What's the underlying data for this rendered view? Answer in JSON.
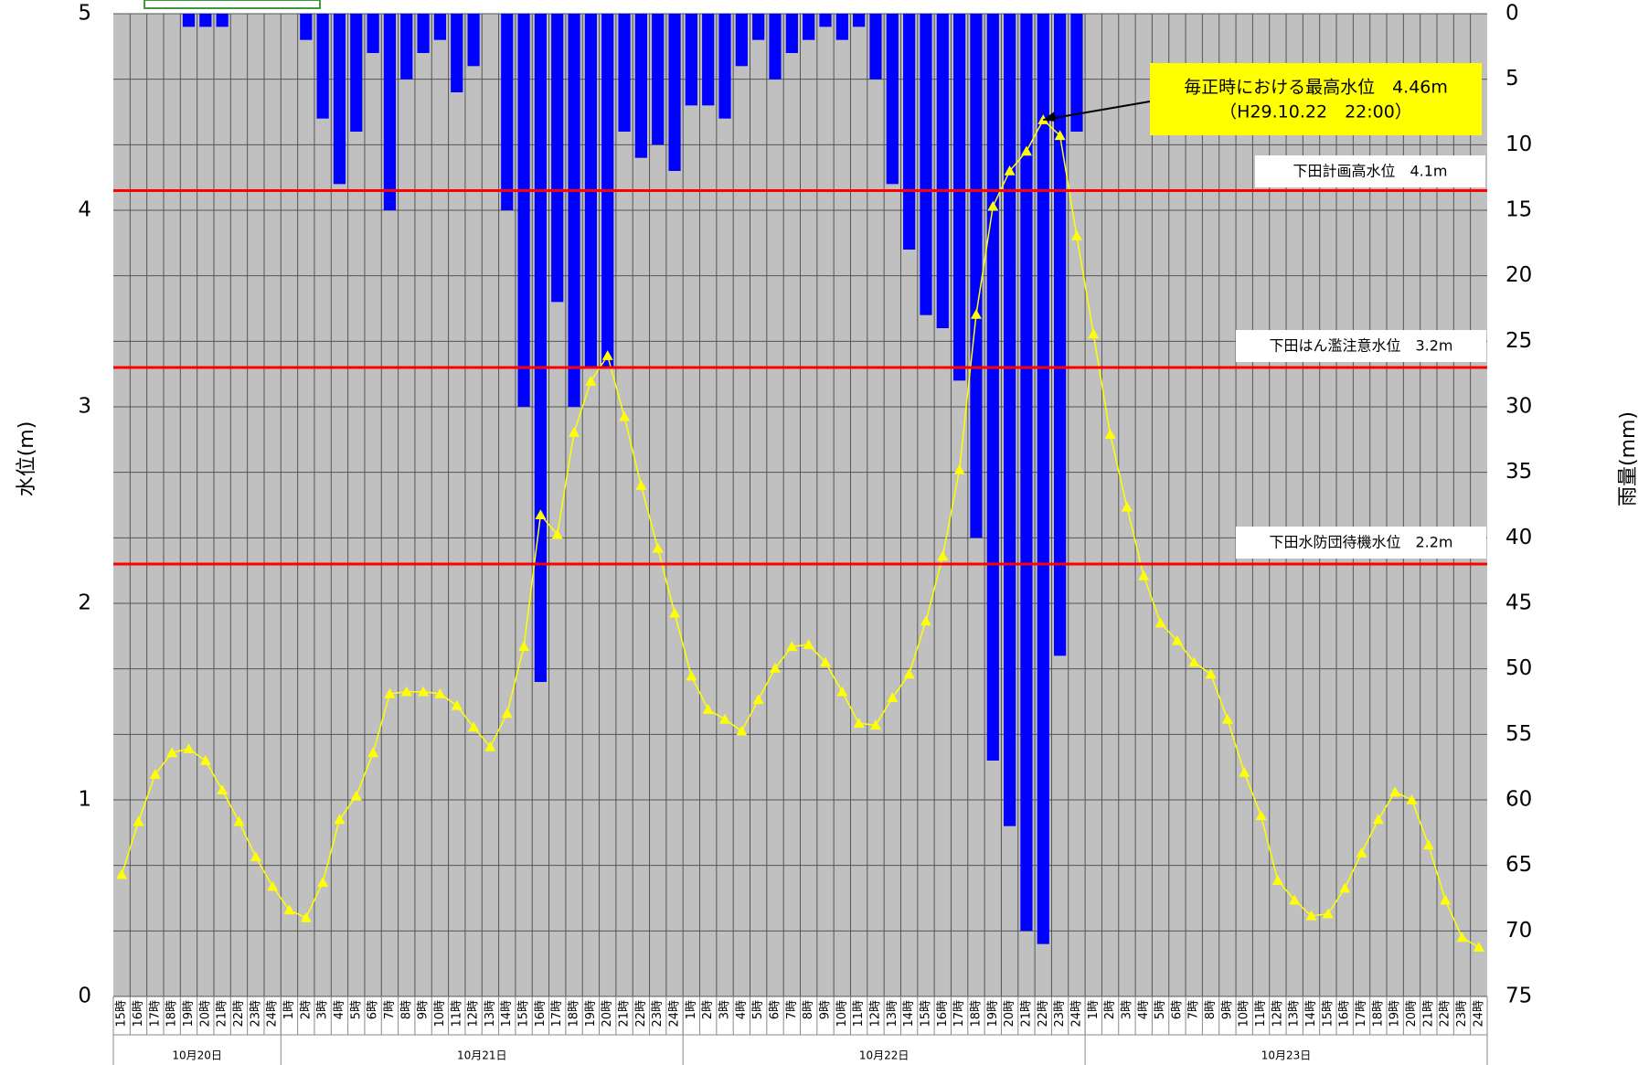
{
  "chart_data": {
    "type": "bar_line",
    "ylabel": "水位(m)",
    "y2label": "雨量(mm)",
    "ylim": [
      0,
      5
    ],
    "yticks": [
      0,
      1,
      2,
      3,
      4,
      5
    ],
    "y2lim": [
      0,
      75
    ],
    "y2ticks": [
      0,
      5,
      10,
      15,
      20,
      25,
      30,
      35,
      40,
      45,
      50,
      55,
      60,
      65,
      70,
      75
    ],
    "y2_inverted": true,
    "grid": true,
    "groups": [
      {
        "label": "10月20日",
        "categories": [
          "15時",
          "16時",
          "17時",
          "18時",
          "19時",
          "20時",
          "21時",
          "22時",
          "23時",
          "24時"
        ]
      },
      {
        "label": "10月21日",
        "categories": [
          "1時",
          "2時",
          "3時",
          "4時",
          "5時",
          "6時",
          "7時",
          "8時",
          "9時",
          "10時",
          "11時",
          "12時",
          "13時",
          "14時",
          "15時",
          "16時",
          "17時",
          "18時",
          "19時",
          "20時",
          "21時",
          "22時",
          "23時",
          "24時"
        ]
      },
      {
        "label": "10月22日",
        "categories": [
          "1時",
          "2時",
          "3時",
          "4時",
          "5時",
          "6時",
          "7時",
          "8時",
          "9時",
          "10時",
          "11時",
          "12時",
          "13時",
          "14時",
          "15時",
          "16時",
          "17時",
          "18時",
          "19時",
          "20時",
          "21時",
          "22時",
          "23時",
          "24時"
        ]
      },
      {
        "label": "10月23日",
        "categories": [
          "1時",
          "2時",
          "3時",
          "4時",
          "5時",
          "6時",
          "7時",
          "8時",
          "9時",
          "10時",
          "11時",
          "12時",
          "13時",
          "14時",
          "15時",
          "16時",
          "17時",
          "18時",
          "19時",
          "20時",
          "21時",
          "22時",
          "23時",
          "24時"
        ]
      }
    ],
    "series": [
      {
        "type": "bar",
        "axis": "y2",
        "color": "#0000ff",
        "values": [
          0,
          0,
          0,
          0,
          1,
          1,
          1,
          0,
          0,
          0,
          0,
          2,
          8,
          13,
          9,
          3,
          15,
          5,
          3,
          2,
          6,
          4,
          0,
          15,
          30,
          51,
          22,
          30,
          27,
          27,
          9,
          11,
          10,
          12,
          7,
          7,
          8,
          4,
          2,
          5,
          3,
          2,
          1,
          2,
          1,
          5,
          13,
          18,
          23,
          24,
          28,
          40,
          57,
          62,
          70,
          71,
          49,
          9,
          0,
          0,
          0,
          0,
          0,
          0,
          0,
          0,
          0,
          0,
          0,
          0,
          0,
          0,
          0,
          0,
          0,
          0,
          0,
          0,
          0,
          0,
          0,
          0
        ]
      },
      {
        "type": "line",
        "axis": "y",
        "color": "#ffff00",
        "values": [
          0.62,
          0.89,
          1.13,
          1.24,
          1.26,
          1.2,
          1.05,
          0.89,
          0.71,
          0.56,
          0.44,
          0.4,
          0.58,
          0.9,
          1.02,
          1.24,
          1.54,
          1.55,
          1.55,
          1.54,
          1.48,
          1.37,
          1.27,
          1.44,
          1.78,
          2.45,
          2.35,
          2.87,
          3.13,
          3.26,
          2.95,
          2.6,
          2.28,
          1.95,
          1.63,
          1.46,
          1.41,
          1.35,
          1.51,
          1.67,
          1.78,
          1.79,
          1.7,
          1.55,
          1.39,
          1.38,
          1.52,
          1.64,
          1.91,
          2.24,
          2.68,
          3.47,
          4.02,
          4.2,
          4.3,
          4.46,
          4.38,
          3.87,
          3.37,
          2.86,
          2.49,
          2.14,
          1.9,
          1.81,
          1.7,
          1.64,
          1.41,
          1.14,
          0.92,
          0.59,
          0.49,
          0.41,
          0.42,
          0.55,
          0.73,
          0.9,
          1.04,
          1.0,
          0.77,
          0.49,
          0.3,
          0.25
        ]
      }
    ],
    "reference_lines": [
      {
        "label": "下田計画高水位　4.1m",
        "value": 4.1,
        "color": "#ff0000"
      },
      {
        "label": "下田はん濫注意水位　3.2m",
        "value": 3.2,
        "color": "#ff0000"
      },
      {
        "label": "下田水防団待機水位　2.2m",
        "value": 2.2,
        "color": "#ff0000"
      }
    ],
    "annotation": {
      "lines": [
        "毎正時における最高水位　4.46m",
        "（H29.10.22　22:00）"
      ]
    }
  }
}
